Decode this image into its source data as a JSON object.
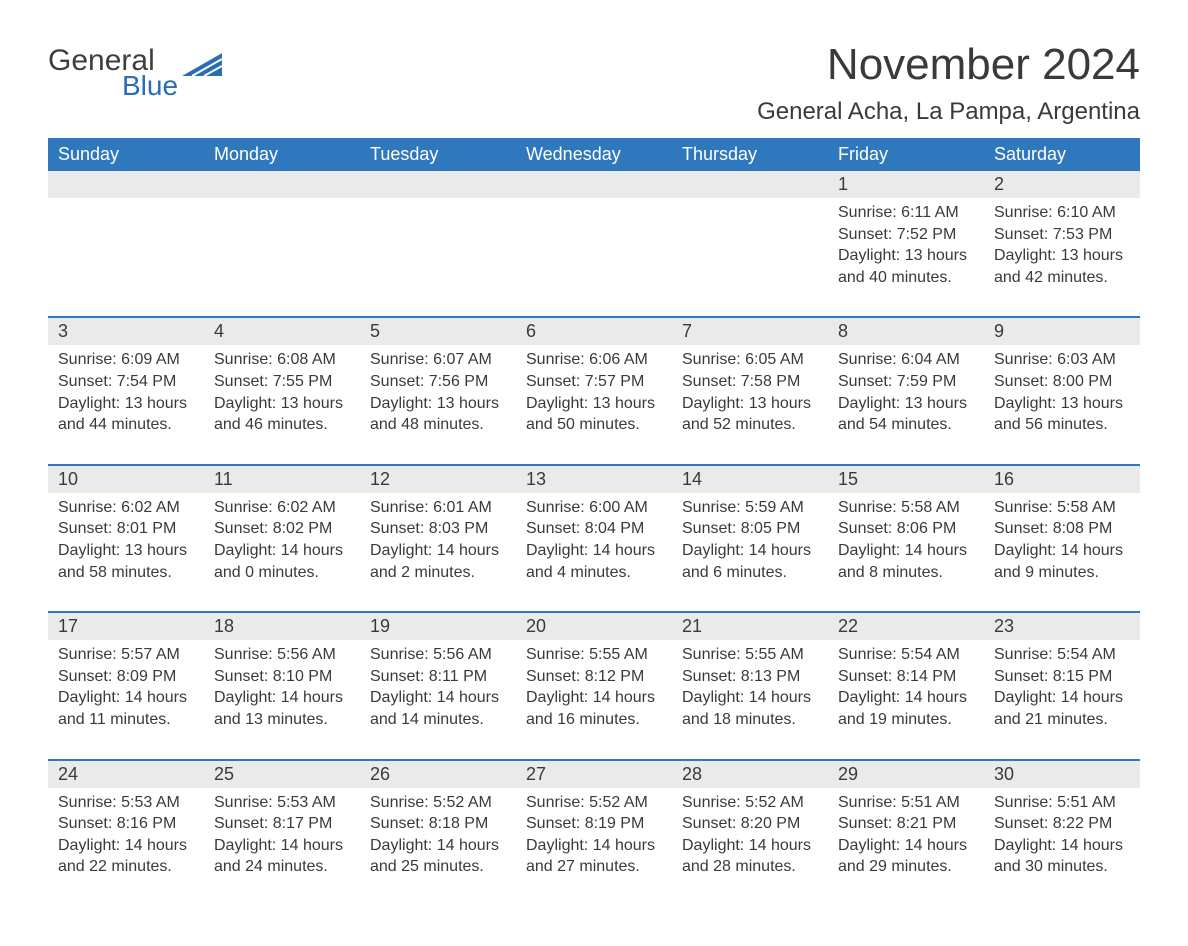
{
  "brand": {
    "word1": "General",
    "word2": "Blue",
    "word1_color": "#3e3e3e",
    "word2_color": "#2a6db5"
  },
  "header": {
    "month_title": "November 2024",
    "location": "General Acha, La Pampa, Argentina"
  },
  "colors": {
    "header_bg": "#3078bd",
    "header_text": "#ffffff",
    "daynum_bg": "#eaeaea",
    "text": "#3a3a3a",
    "week_border": "#3078bd",
    "page_bg": "#ffffff"
  },
  "typography": {
    "month_title_fontsize": 44,
    "location_fontsize": 24,
    "weekday_fontsize": 18,
    "daynum_fontsize": 18,
    "detail_fontsize": 16
  },
  "weekdays": [
    "Sunday",
    "Monday",
    "Tuesday",
    "Wednesday",
    "Thursday",
    "Friday",
    "Saturday"
  ],
  "weeks": [
    [
      {
        "empty": true
      },
      {
        "empty": true
      },
      {
        "empty": true
      },
      {
        "empty": true
      },
      {
        "empty": true
      },
      {
        "day": "1",
        "sunrise": "Sunrise: 6:11 AM",
        "sunset": "Sunset: 7:52 PM",
        "daylight1": "Daylight: 13 hours",
        "daylight2": "and 40 minutes."
      },
      {
        "day": "2",
        "sunrise": "Sunrise: 6:10 AM",
        "sunset": "Sunset: 7:53 PM",
        "daylight1": "Daylight: 13 hours",
        "daylight2": "and 42 minutes."
      }
    ],
    [
      {
        "day": "3",
        "sunrise": "Sunrise: 6:09 AM",
        "sunset": "Sunset: 7:54 PM",
        "daylight1": "Daylight: 13 hours",
        "daylight2": "and 44 minutes."
      },
      {
        "day": "4",
        "sunrise": "Sunrise: 6:08 AM",
        "sunset": "Sunset: 7:55 PM",
        "daylight1": "Daylight: 13 hours",
        "daylight2": "and 46 minutes."
      },
      {
        "day": "5",
        "sunrise": "Sunrise: 6:07 AM",
        "sunset": "Sunset: 7:56 PM",
        "daylight1": "Daylight: 13 hours",
        "daylight2": "and 48 minutes."
      },
      {
        "day": "6",
        "sunrise": "Sunrise: 6:06 AM",
        "sunset": "Sunset: 7:57 PM",
        "daylight1": "Daylight: 13 hours",
        "daylight2": "and 50 minutes."
      },
      {
        "day": "7",
        "sunrise": "Sunrise: 6:05 AM",
        "sunset": "Sunset: 7:58 PM",
        "daylight1": "Daylight: 13 hours",
        "daylight2": "and 52 minutes."
      },
      {
        "day": "8",
        "sunrise": "Sunrise: 6:04 AM",
        "sunset": "Sunset: 7:59 PM",
        "daylight1": "Daylight: 13 hours",
        "daylight2": "and 54 minutes."
      },
      {
        "day": "9",
        "sunrise": "Sunrise: 6:03 AM",
        "sunset": "Sunset: 8:00 PM",
        "daylight1": "Daylight: 13 hours",
        "daylight2": "and 56 minutes."
      }
    ],
    [
      {
        "day": "10",
        "sunrise": "Sunrise: 6:02 AM",
        "sunset": "Sunset: 8:01 PM",
        "daylight1": "Daylight: 13 hours",
        "daylight2": "and 58 minutes."
      },
      {
        "day": "11",
        "sunrise": "Sunrise: 6:02 AM",
        "sunset": "Sunset: 8:02 PM",
        "daylight1": "Daylight: 14 hours",
        "daylight2": "and 0 minutes."
      },
      {
        "day": "12",
        "sunrise": "Sunrise: 6:01 AM",
        "sunset": "Sunset: 8:03 PM",
        "daylight1": "Daylight: 14 hours",
        "daylight2": "and 2 minutes."
      },
      {
        "day": "13",
        "sunrise": "Sunrise: 6:00 AM",
        "sunset": "Sunset: 8:04 PM",
        "daylight1": "Daylight: 14 hours",
        "daylight2": "and 4 minutes."
      },
      {
        "day": "14",
        "sunrise": "Sunrise: 5:59 AM",
        "sunset": "Sunset: 8:05 PM",
        "daylight1": "Daylight: 14 hours",
        "daylight2": "and 6 minutes."
      },
      {
        "day": "15",
        "sunrise": "Sunrise: 5:58 AM",
        "sunset": "Sunset: 8:06 PM",
        "daylight1": "Daylight: 14 hours",
        "daylight2": "and 8 minutes."
      },
      {
        "day": "16",
        "sunrise": "Sunrise: 5:58 AM",
        "sunset": "Sunset: 8:08 PM",
        "daylight1": "Daylight: 14 hours",
        "daylight2": "and 9 minutes."
      }
    ],
    [
      {
        "day": "17",
        "sunrise": "Sunrise: 5:57 AM",
        "sunset": "Sunset: 8:09 PM",
        "daylight1": "Daylight: 14 hours",
        "daylight2": "and 11 minutes."
      },
      {
        "day": "18",
        "sunrise": "Sunrise: 5:56 AM",
        "sunset": "Sunset: 8:10 PM",
        "daylight1": "Daylight: 14 hours",
        "daylight2": "and 13 minutes."
      },
      {
        "day": "19",
        "sunrise": "Sunrise: 5:56 AM",
        "sunset": "Sunset: 8:11 PM",
        "daylight1": "Daylight: 14 hours",
        "daylight2": "and 14 minutes."
      },
      {
        "day": "20",
        "sunrise": "Sunrise: 5:55 AM",
        "sunset": "Sunset: 8:12 PM",
        "daylight1": "Daylight: 14 hours",
        "daylight2": "and 16 minutes."
      },
      {
        "day": "21",
        "sunrise": "Sunrise: 5:55 AM",
        "sunset": "Sunset: 8:13 PM",
        "daylight1": "Daylight: 14 hours",
        "daylight2": "and 18 minutes."
      },
      {
        "day": "22",
        "sunrise": "Sunrise: 5:54 AM",
        "sunset": "Sunset: 8:14 PM",
        "daylight1": "Daylight: 14 hours",
        "daylight2": "and 19 minutes."
      },
      {
        "day": "23",
        "sunrise": "Sunrise: 5:54 AM",
        "sunset": "Sunset: 8:15 PM",
        "daylight1": "Daylight: 14 hours",
        "daylight2": "and 21 minutes."
      }
    ],
    [
      {
        "day": "24",
        "sunrise": "Sunrise: 5:53 AM",
        "sunset": "Sunset: 8:16 PM",
        "daylight1": "Daylight: 14 hours",
        "daylight2": "and 22 minutes."
      },
      {
        "day": "25",
        "sunrise": "Sunrise: 5:53 AM",
        "sunset": "Sunset: 8:17 PM",
        "daylight1": "Daylight: 14 hours",
        "daylight2": "and 24 minutes."
      },
      {
        "day": "26",
        "sunrise": "Sunrise: 5:52 AM",
        "sunset": "Sunset: 8:18 PM",
        "daylight1": "Daylight: 14 hours",
        "daylight2": "and 25 minutes."
      },
      {
        "day": "27",
        "sunrise": "Sunrise: 5:52 AM",
        "sunset": "Sunset: 8:19 PM",
        "daylight1": "Daylight: 14 hours",
        "daylight2": "and 27 minutes."
      },
      {
        "day": "28",
        "sunrise": "Sunrise: 5:52 AM",
        "sunset": "Sunset: 8:20 PM",
        "daylight1": "Daylight: 14 hours",
        "daylight2": "and 28 minutes."
      },
      {
        "day": "29",
        "sunrise": "Sunrise: 5:51 AM",
        "sunset": "Sunset: 8:21 PM",
        "daylight1": "Daylight: 14 hours",
        "daylight2": "and 29 minutes."
      },
      {
        "day": "30",
        "sunrise": "Sunrise: 5:51 AM",
        "sunset": "Sunset: 8:22 PM",
        "daylight1": "Daylight: 14 hours",
        "daylight2": "and 30 minutes."
      }
    ]
  ]
}
